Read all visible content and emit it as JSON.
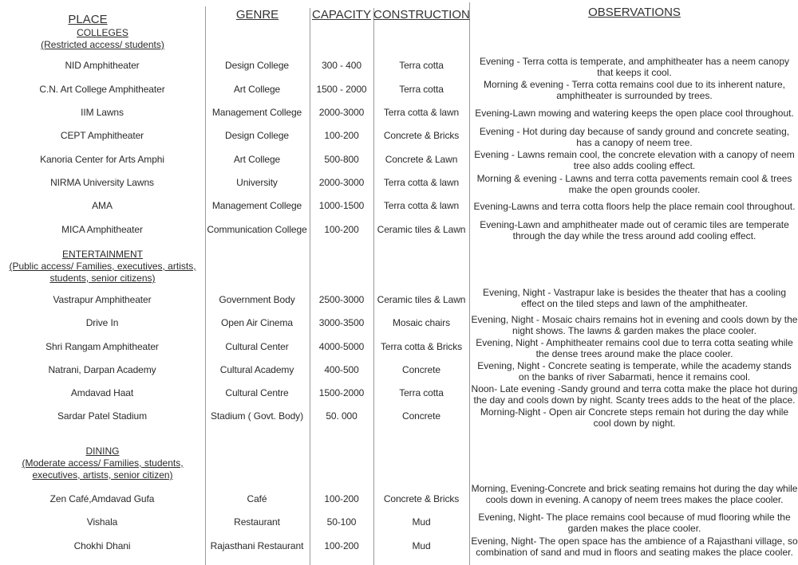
{
  "headers": {
    "place": "PLACE",
    "genre": "GENRE",
    "capacity": "CAPACITY",
    "construction": "CONSTRUCTION",
    "observations": "OBSERVATIONS"
  },
  "sections": [
    {
      "title": "COLLEGES",
      "subtitle": "(Restricted access/ students)",
      "rows": [
        {
          "place": "NID Amphitheater",
          "genre": "Design College",
          "capacity": "300 - 400",
          "construction": "Terra cotta",
          "observations": "Evening - Terra cotta is temperate, and amphitheater has a neem canopy that keeps it cool."
        },
        {
          "place": "C.N. Art College Amphitheater",
          "genre": "Art College",
          "capacity": "1500 - 2000",
          "construction": "Terra cotta",
          "observations": "Morning & evening - Terra cotta remains cool due to its inherent nature, amphitheater is surrounded by trees."
        },
        {
          "place": "IIM Lawns",
          "genre": "Management College",
          "capacity": "2000-3000",
          "construction": "Terra cotta & lawn",
          "observations": "Evening-Lawn mowing and watering keeps the open place cool throughout."
        },
        {
          "place": "CEPT Amphitheater",
          "genre": "Design College",
          "capacity": "100-200",
          "construction": "Concrete & Bricks",
          "observations": "Evening - Hot during day because of sandy ground and concrete seating, has a canopy of neem tree."
        },
        {
          "place": "Kanoria Center for Arts Amphi",
          "genre": "Art College",
          "capacity": "500-800",
          "construction": "Concrete & Lawn",
          "observations": "Evening - Lawns remain cool, the concrete elevation with a canopy of neem tree also adds cooling effect."
        },
        {
          "place": "NIRMA University Lawns",
          "genre": "University",
          "capacity": "2000-3000",
          "construction": "Terra cotta & lawn",
          "observations": "Morning & evening - Lawns and terra cotta pavements remain cool & trees make the open grounds cooler."
        },
        {
          "place": "AMA",
          "genre": "Management College",
          "capacity": "1000-1500",
          "construction": "Terra cotta & lawn",
          "observations": "Evening-Lawns and terra cotta floors help the place remain cool throughout."
        },
        {
          "place": "MICA Amphitheater",
          "genre": "Communication College",
          "capacity": "100-200",
          "construction": "Ceramic tiles & Lawn",
          "observations": "Evening-Lawn and amphitheater made out of ceramic tiles are temperate through the day while the tress around add cooling effect."
        }
      ]
    },
    {
      "title": "ENTERTAINMENT",
      "subtitle": "(Public access/ Families, executives, artists, students, senior citizens)",
      "rows": [
        {
          "place": "Vastrapur Amphitheater",
          "genre": "Government Body",
          "capacity": "2500-3000",
          "construction": "Ceramic tiles & Lawn",
          "observations": "Evening, Night - Vastrapur lake is besides the theater that has a cooling effect on the tiled steps and lawn of the amphitheater."
        },
        {
          "place": "Drive In",
          "genre": "Open Air Cinema",
          "capacity": "3000-3500",
          "construction": "Mosaic chairs",
          "observations": "Evening, Night - Mosaic chairs remains hot in evening and cools down by the night shows. The lawns & garden makes the place cooler."
        },
        {
          "place": "Shri Rangam Amphitheater",
          "genre": "Cultural Center",
          "capacity": "4000-5000",
          "construction": "Terra cotta & Bricks",
          "observations": "Evening, Night - Amphitheater remains cool due to terra cotta seating while the dense trees around make the place cooler."
        },
        {
          "place": "Natrani, Darpan Academy",
          "genre": "Cultural Academy",
          "capacity": "400-500",
          "construction": "Concrete",
          "observations": "Evening, Night - Concrete seating is temperate, while the academy stands on the banks of river Sabarmati, hence it remains cool."
        },
        {
          "place": "Amdavad Haat",
          "genre": "Cultural Centre",
          "capacity": "1500-2000",
          "construction": "Terra cotta",
          "observations": "Noon- Late evening -Sandy ground and terra cotta make the place hot during the day and cools down by night. Scanty trees adds to the heat of the place."
        },
        {
          "place": "Sardar Patel Stadium",
          "genre": "Stadium ( Govt. Body)",
          "capacity": "50. 000",
          "construction": "Concrete",
          "observations": "Morning-Night - Open air Concrete steps remain hot during the day while cool down by night."
        }
      ]
    },
    {
      "title": "DINING",
      "subtitle": "(Moderate access/ Families, students, executives, artists, senior citizen)",
      "rows": [
        {
          "place": "Zen Café,Amdavad Gufa",
          "genre": "Café",
          "capacity": "100-200",
          "construction": "Concrete & Bricks",
          "observations": "Morning, Evening-Concrete and brick seating remains hot during the day while cools down in evening. A canopy of neem trees makes the place cooler."
        },
        {
          "place": "Vishala",
          "genre": "Restaurant",
          "capacity": "50-100",
          "construction": "Mud",
          "observations": "Evening, Night- The place remains cool because of mud flooring while the garden makes the place cooler."
        },
        {
          "place": "Chokhi Dhani",
          "genre": "Rajasthani Restaurant",
          "capacity": "100-200",
          "construction": "Mud",
          "observations": "Evening, Night- The open space has the ambience of a Rajasthani village, so combination of sand and mud in floors and seating makes the place cooler."
        }
      ]
    }
  ]
}
